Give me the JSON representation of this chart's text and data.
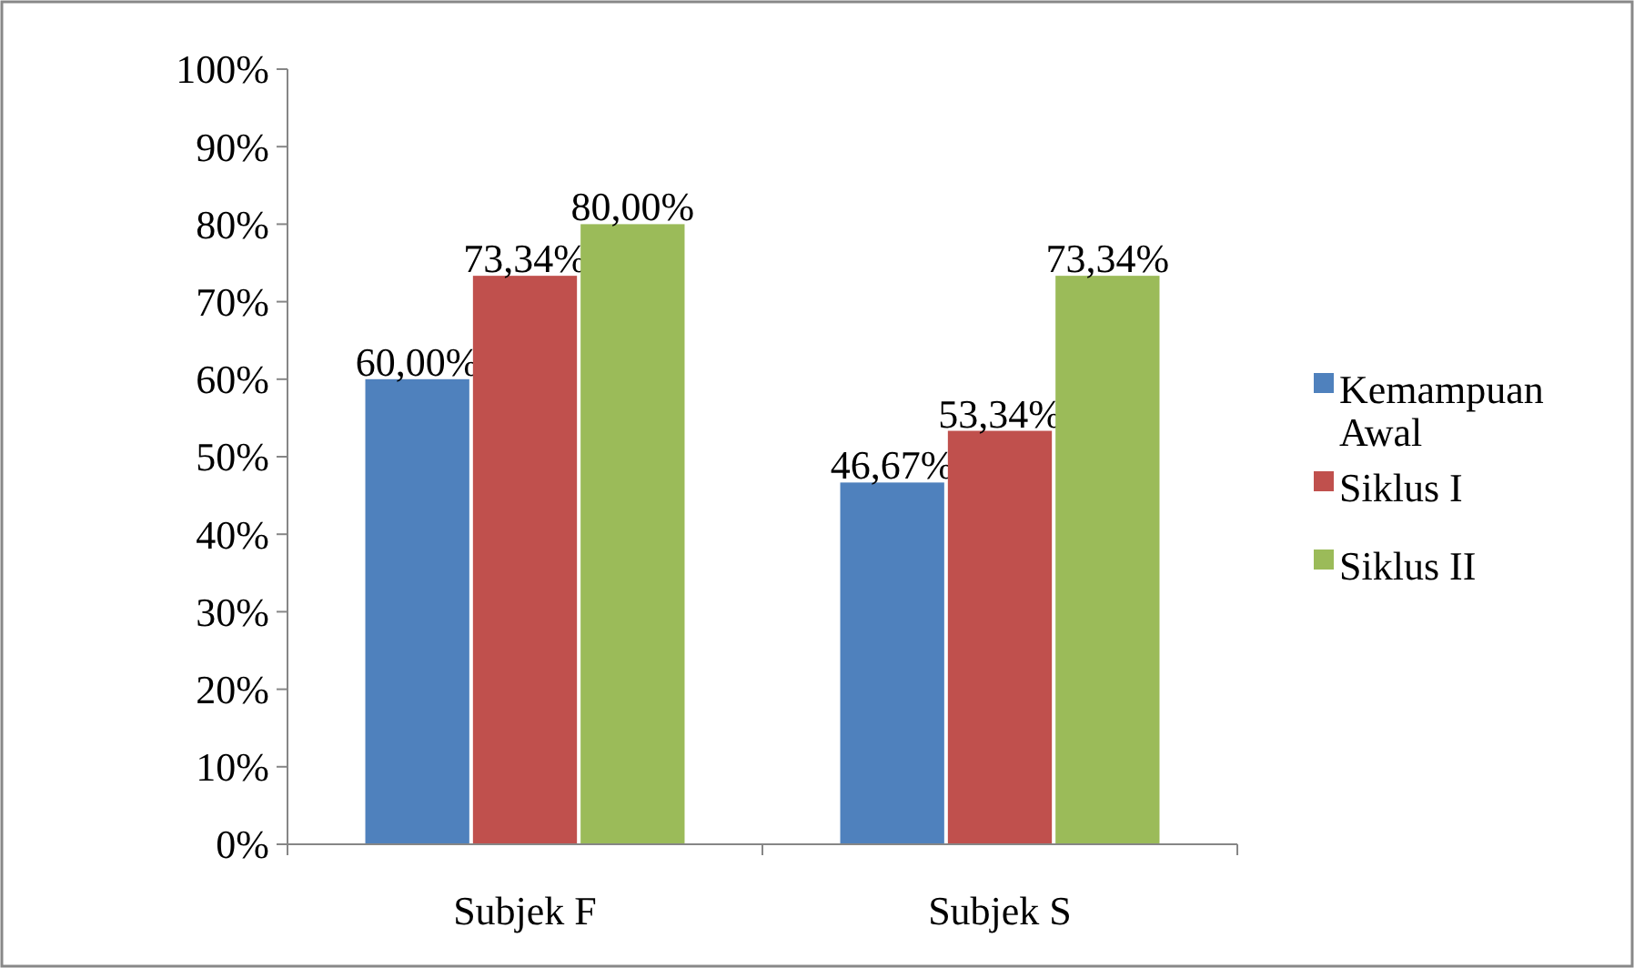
{
  "chart_data": {
    "type": "bar",
    "categories": [
      "Subjek F",
      "Subjek S"
    ],
    "series": [
      {
        "name": "Kemampuan Awal",
        "color": "#4f81bd",
        "values": [
          60.0,
          46.67
        ],
        "value_labels": [
          "60,00%",
          "46,67%"
        ]
      },
      {
        "name": "Siklus I",
        "color": "#c0504d",
        "values": [
          73.34,
          53.34
        ],
        "value_labels": [
          "73,34%",
          "53,34%"
        ]
      },
      {
        "name": "Siklus II",
        "color": "#9bbb59",
        "values": [
          80.0,
          73.34
        ],
        "value_labels": [
          "80,00%",
          "73,34%"
        ]
      }
    ],
    "ylim": [
      0,
      100
    ],
    "yticks": [
      {
        "value": 0,
        "label": "0%"
      },
      {
        "value": 10,
        "label": "10%"
      },
      {
        "value": 20,
        "label": "20%"
      },
      {
        "value": 30,
        "label": "30%"
      },
      {
        "value": 40,
        "label": "40%"
      },
      {
        "value": 50,
        "label": "50%"
      },
      {
        "value": 60,
        "label": "60%"
      },
      {
        "value": 70,
        "label": "70%"
      },
      {
        "value": 80,
        "label": "80%"
      },
      {
        "value": 90,
        "label": "90%"
      },
      {
        "value": 100,
        "label": "100%"
      }
    ],
    "grid": false,
    "legend": "right"
  }
}
